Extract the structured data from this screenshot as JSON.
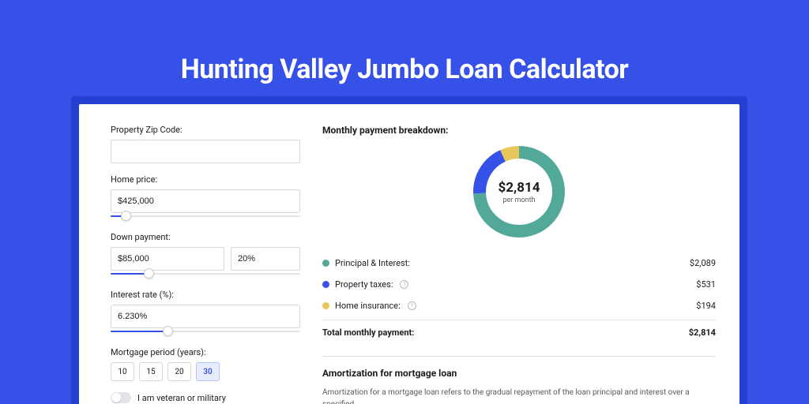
{
  "colors": {
    "bg": "#3651e8",
    "shadow": "#2440d1",
    "card": "#ffffff",
    "border": "#d6d6db",
    "text": "#1c1c1e",
    "muted": "#5a5a60",
    "sliderTrack": "#e2e2e8",
    "periodActiveBg": "#e8ecff",
    "periodActiveBorder": "#b8c2ff"
  },
  "title": "Hunting Valley Jumbo Loan Calculator",
  "form": {
    "zip": {
      "label": "Property Zip Code:",
      "value": ""
    },
    "homePrice": {
      "label": "Home price:",
      "value": "$425,000",
      "sliderPercent": 8
    },
    "downPayment": {
      "label": "Down payment:",
      "amount": "$85,000",
      "percent": "20%",
      "sliderPercent": 20
    },
    "interestRate": {
      "label": "Interest rate (%):",
      "value": "6.230%",
      "sliderPercent": 30
    },
    "mortgagePeriod": {
      "label": "Mortgage period (years):",
      "options": [
        "10",
        "15",
        "20",
        "30"
      ],
      "active": "30"
    },
    "veteran": {
      "label": "I am veteran or military",
      "on": false
    }
  },
  "breakdown": {
    "title": "Monthly payment breakdown:",
    "donut": {
      "amount": "$2,814",
      "sub": "per month",
      "slices": [
        {
          "key": "principal",
          "value": 2089,
          "color": "#52a999"
        },
        {
          "key": "taxes",
          "value": 531,
          "color": "#3651e8"
        },
        {
          "key": "insurance",
          "value": 194,
          "color": "#e8c75a"
        }
      ],
      "strokeWidth": 16,
      "radius": 50
    },
    "rows": [
      {
        "label": "Principal & Interest:",
        "amount": "$2,089",
        "color": "#52a999",
        "info": false
      },
      {
        "label": "Property taxes:",
        "amount": "$531",
        "color": "#3651e8",
        "info": true
      },
      {
        "label": "Home insurance:",
        "amount": "$194",
        "color": "#e8c75a",
        "info": true
      }
    ],
    "total": {
      "label": "Total monthly payment:",
      "amount": "$2,814"
    }
  },
  "amortization": {
    "title": "Amortization for mortgage loan",
    "text": "Amortization for a mortgage loan refers to the gradual repayment of the loan principal and interest over a specified"
  }
}
